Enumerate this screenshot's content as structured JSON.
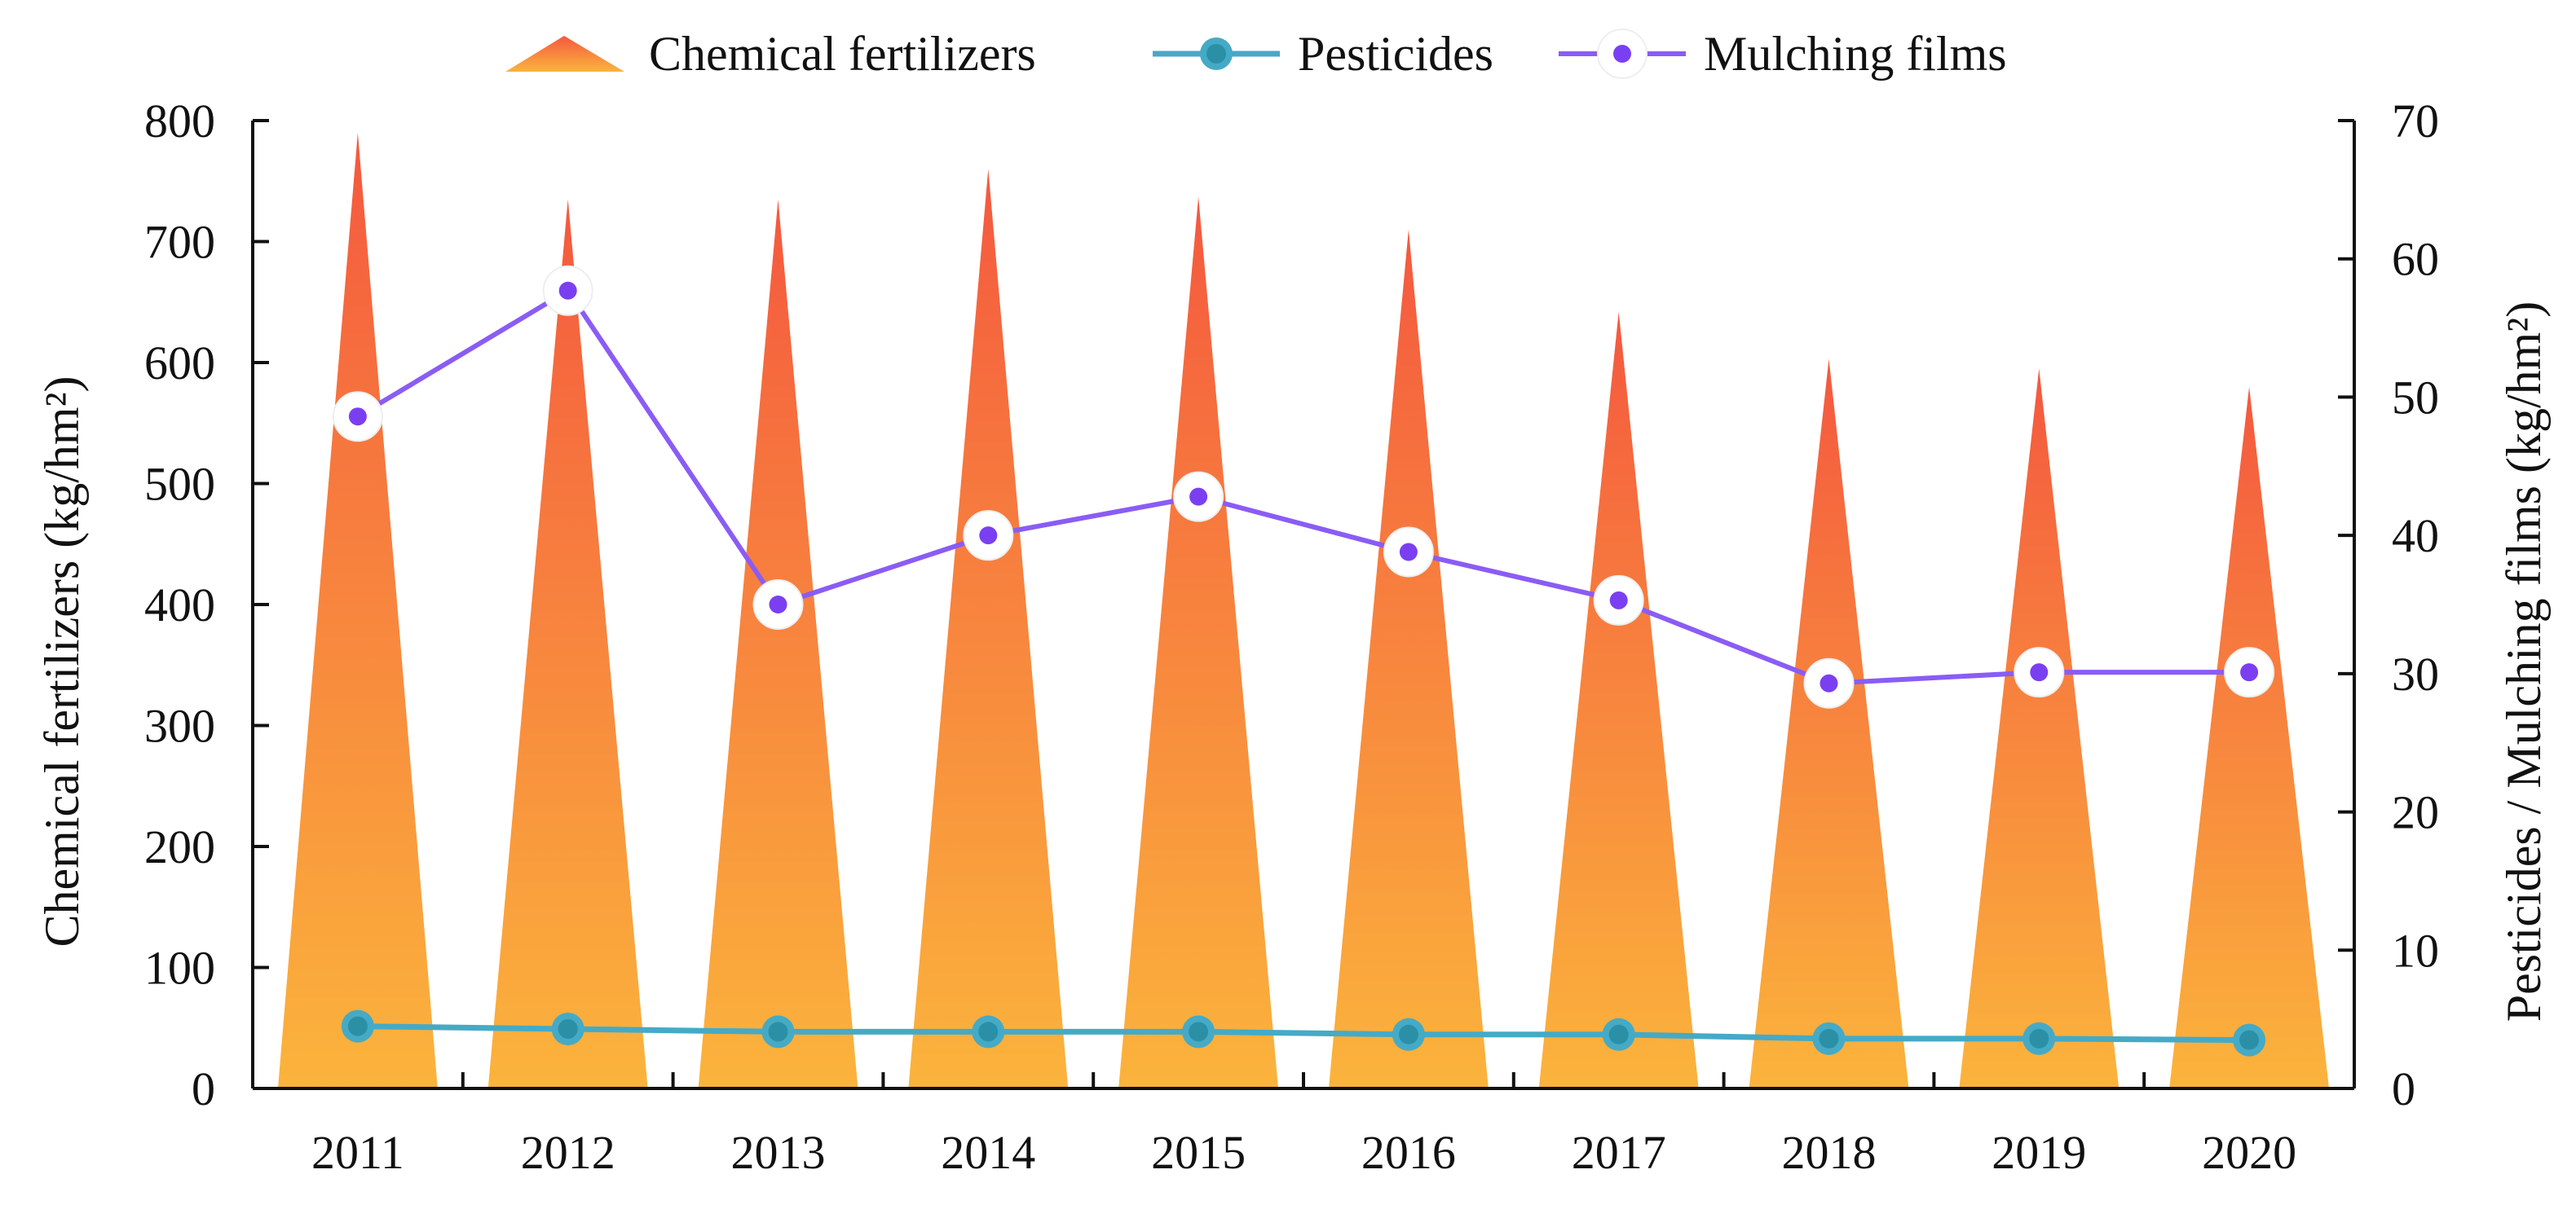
{
  "chart_data": {
    "type": "bar",
    "title": "",
    "categories": [
      "2011",
      "2012",
      "2013",
      "2014",
      "2015",
      "2016",
      "2017",
      "2018",
      "2019",
      "2020"
    ],
    "left_axis": {
      "label": "Chemical fertilizers (kg/hm²)",
      "ylim": [
        0,
        800
      ],
      "ticks": [
        "0",
        "100",
        "200",
        "300",
        "400",
        "500",
        "600",
        "700",
        "800"
      ]
    },
    "right_axis": {
      "label": "Pesticides / Mulching films (kg/hm²)",
      "ylim": [
        0,
        70
      ],
      "ticks": [
        "0",
        "10",
        "20",
        "30",
        "40",
        "50",
        "60",
        "70"
      ]
    },
    "series": [
      {
        "name": "Chemical fertilizers",
        "type": "triangle-bar",
        "axis": "left",
        "values": [
          790,
          735,
          735,
          760,
          737,
          710,
          642,
          603,
          595,
          580
        ],
        "color_top": "#f4583f",
        "color_bottom": "#fbb43c"
      },
      {
        "name": "Pesticides",
        "type": "line",
        "axis": "right",
        "values": [
          4.5,
          4.3,
          4.1,
          4.1,
          4.1,
          3.9,
          3.9,
          3.6,
          3.6,
          3.5
        ],
        "color": "#45aac6",
        "marker_color": "#2b8fa6"
      },
      {
        "name": "Mulching films",
        "type": "line",
        "axis": "right",
        "values": [
          48.6,
          57.7,
          35.0,
          40.0,
          42.8,
          38.8,
          35.3,
          29.3,
          30.1,
          30.1
        ],
        "color": "#8a5cf5",
        "marker_color": "#7b3ff2"
      }
    ],
    "legend": {
      "position": "top-center",
      "items": [
        "Chemical fertilizers",
        "Pesticides",
        "Mulching films"
      ]
    }
  }
}
